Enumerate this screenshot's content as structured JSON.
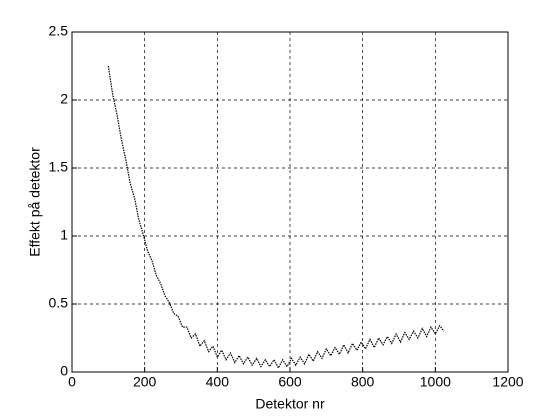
{
  "chart_data": {
    "type": "line",
    "xlabel": "Detektor nr",
    "ylabel": "Effekt på detektor",
    "x": [
      100,
      112,
      124,
      136,
      148,
      160,
      172,
      184,
      196,
      208,
      220,
      232,
      244,
      256,
      268,
      280,
      292,
      304,
      316,
      328,
      340,
      352,
      364,
      376,
      388,
      400,
      412,
      424,
      436,
      448,
      460,
      472,
      484,
      496,
      508,
      520,
      532,
      544,
      556,
      568,
      580,
      592,
      604,
      616,
      628,
      640,
      652,
      664,
      676,
      688,
      700,
      712,
      724,
      736,
      748,
      760,
      772,
      784,
      796,
      808,
      820,
      832,
      844,
      856,
      868,
      880,
      892,
      904,
      916,
      928,
      940,
      952,
      964,
      976,
      988,
      1000,
      1012,
      1024
    ],
    "series": [
      {
        "color": "#000000",
        "values": [
          2.25,
          2.04,
          1.89,
          1.71,
          1.56,
          1.39,
          1.28,
          1.12,
          1.01,
          0.89,
          0.82,
          0.71,
          0.65,
          0.56,
          0.51,
          0.43,
          0.41,
          0.33,
          0.33,
          0.25,
          0.28,
          0.19,
          0.23,
          0.15,
          0.19,
          0.11,
          0.16,
          0.09,
          0.14,
          0.07,
          0.12,
          0.06,
          0.11,
          0.05,
          0.1,
          0.04,
          0.09,
          0.04,
          0.09,
          0.03,
          0.09,
          0.04,
          0.1,
          0.05,
          0.11,
          0.06,
          0.13,
          0.08,
          0.15,
          0.1,
          0.17,
          0.12,
          0.18,
          0.13,
          0.2,
          0.14,
          0.21,
          0.16,
          0.22,
          0.17,
          0.24,
          0.18,
          0.25,
          0.2,
          0.26,
          0.21,
          0.28,
          0.22,
          0.29,
          0.24,
          0.3,
          0.25,
          0.32,
          0.26,
          0.33,
          0.28,
          0.34,
          0.3
        ]
      }
    ],
    "xlim": [
      0,
      1200
    ],
    "xticks": [
      0,
      200,
      400,
      600,
      800,
      1000,
      1200
    ],
    "ylim": [
      0,
      2.5
    ],
    "yticks": [
      0,
      0.5,
      1,
      1.5,
      2,
      2.5
    ],
    "grid": true
  }
}
